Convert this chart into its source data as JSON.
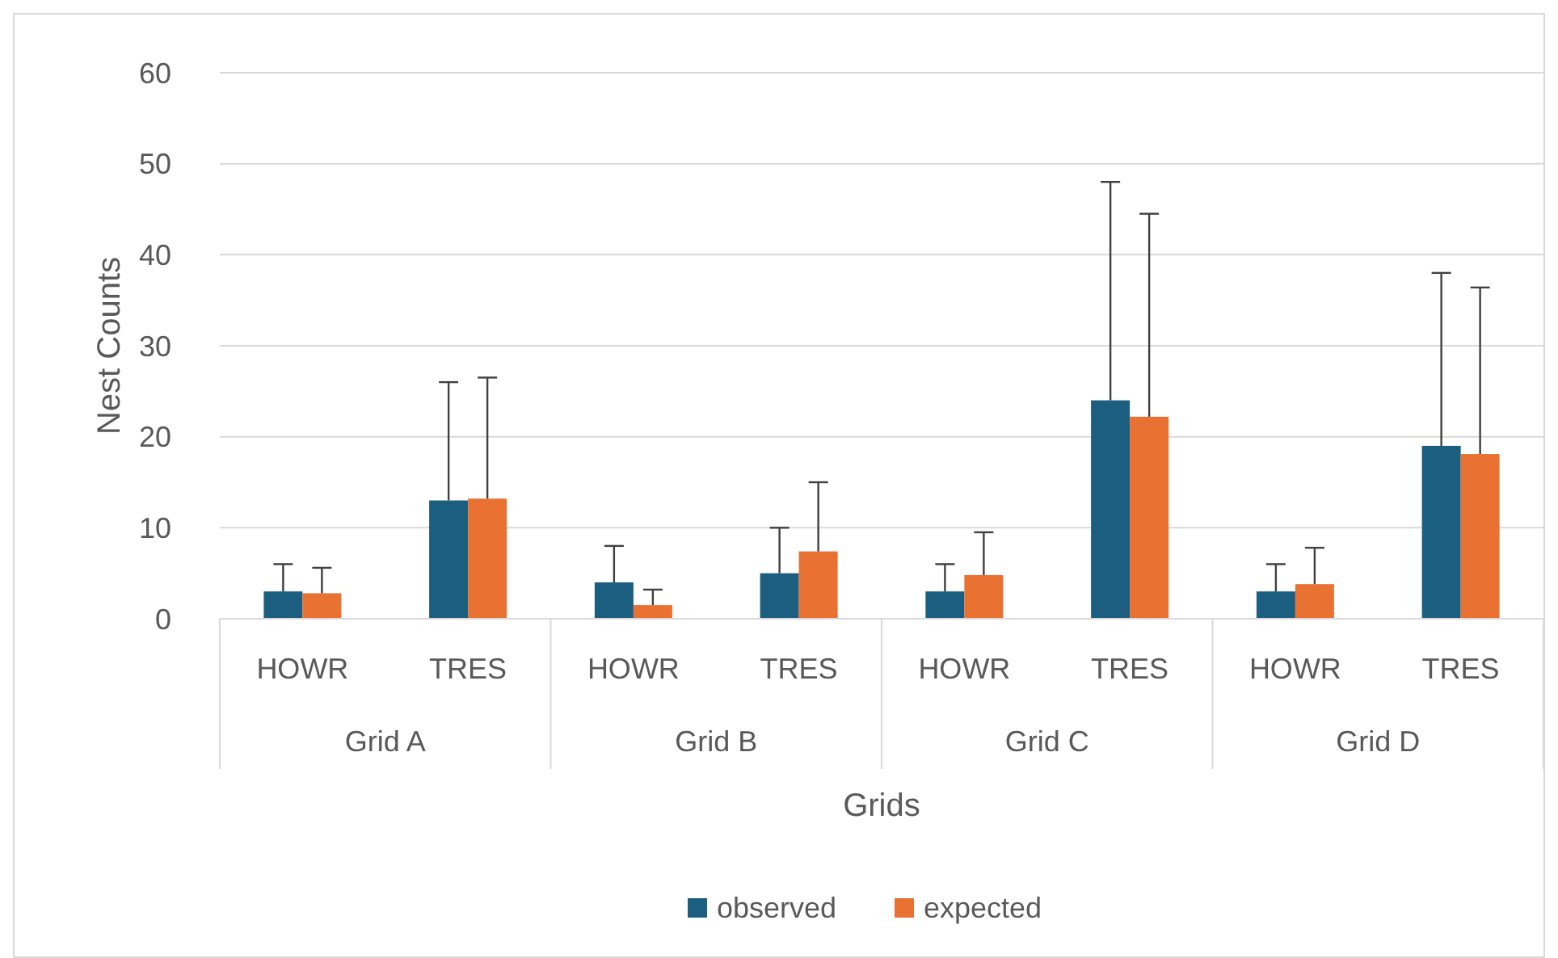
{
  "chart_data": {
    "type": "bar",
    "xlabel": "Grids",
    "ylabel": "Nest Counts",
    "categories": [
      "HOWR",
      "TRES",
      "HOWR",
      "TRES",
      "HOWR",
      "TRES",
      "HOWR",
      "TRES"
    ],
    "annotations": [
      "Grid A",
      "Grid B",
      "Grid C",
      "Grid D"
    ],
    "series": [
      {
        "name": "observed",
        "color": "#1b5e80",
        "values": [
          3,
          13,
          4,
          5,
          3,
          24,
          3,
          19
        ],
        "errors": [
          [
            3,
            6
          ],
          [
            13,
            26
          ],
          [
            4,
            8
          ],
          [
            5,
            10
          ],
          [
            3,
            6
          ],
          [
            24,
            48
          ],
          [
            3,
            6
          ],
          [
            19,
            38
          ]
        ]
      },
      {
        "name": "expected",
        "color": "#e97132",
        "values": [
          2.8,
          13.2,
          1.5,
          7.4,
          4.8,
          22.2,
          3.8,
          18.1
        ],
        "errors": [
          [
            2.8,
            5.6
          ],
          [
            13.2,
            26.5
          ],
          [
            1.5,
            3.2
          ],
          [
            7.4,
            15
          ],
          [
            4.8,
            9.5
          ],
          [
            22.2,
            44.5
          ],
          [
            3.8,
            7.8
          ],
          [
            18.1,
            36.4
          ]
        ]
      }
    ],
    "ylim": [
      0,
      60
    ],
    "yticks": [
      0,
      10,
      20,
      30,
      40,
      50,
      60
    ],
    "grid": "y",
    "legend": "bottom"
  }
}
